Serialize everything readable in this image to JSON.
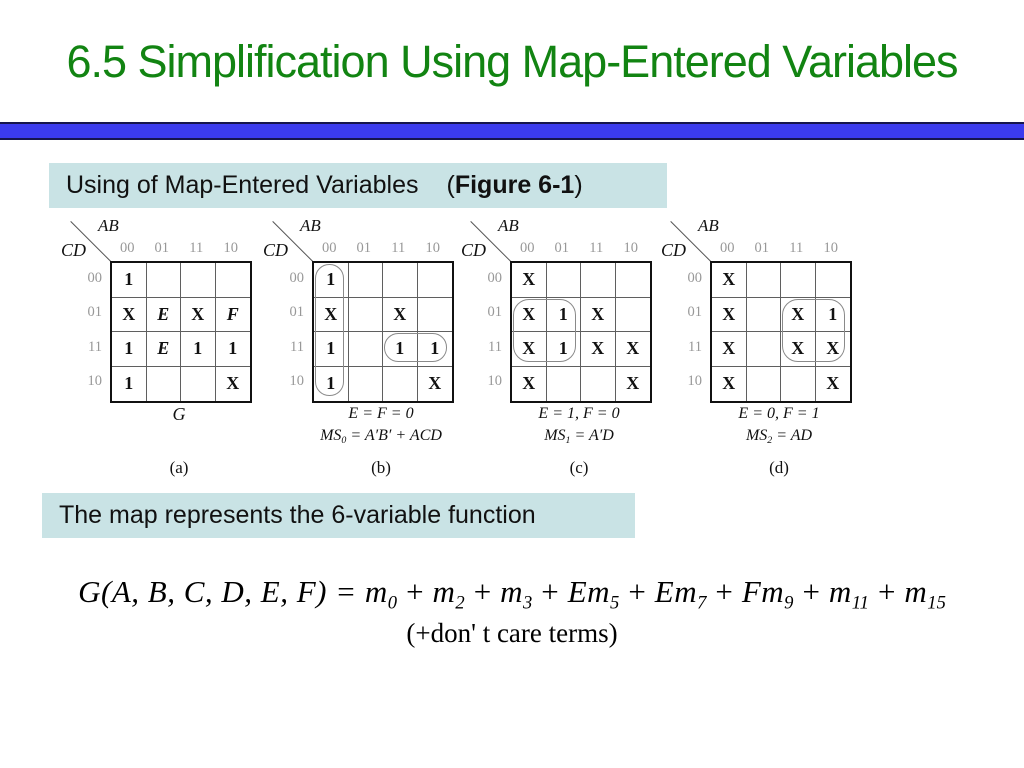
{
  "slide": {
    "title": "6.5 Simplification Using Map-Entered Variables",
    "colors": {
      "title_green": "#128412",
      "divider_blue": "#3b3bee",
      "callout_teal": "#c9e3e5"
    }
  },
  "callout1": {
    "label": "Using of Map-Entered Variables",
    "open": "(",
    "figure": "Figure 6-1",
    "close": ")"
  },
  "callout2": {
    "text": "The map represents the 6-variable function"
  },
  "kmap_axis": {
    "top_var": "AB",
    "side_var": "CD",
    "col_labels": [
      "00",
      "01",
      "11",
      "10"
    ],
    "row_labels": [
      "00",
      "01",
      "11",
      "10"
    ]
  },
  "maps": [
    {
      "label": "(a)",
      "cells": [
        [
          "1",
          "",
          "",
          ""
        ],
        [
          "X",
          "E",
          "X",
          "F"
        ],
        [
          "1",
          "E",
          "1",
          "1"
        ],
        [
          "1",
          "",
          "",
          "X"
        ]
      ],
      "loops": [],
      "caption_g": "G"
    },
    {
      "label": "(b)",
      "cells": [
        [
          "1",
          "",
          "",
          ""
        ],
        [
          "X",
          "",
          "X",
          ""
        ],
        [
          "1",
          "",
          "1",
          "1"
        ],
        [
          "1",
          "",
          "",
          "X"
        ]
      ],
      "loops": [
        {
          "rows": [
            0,
            3
          ],
          "cols": [
            0,
            0
          ]
        },
        {
          "rows": [
            2,
            2
          ],
          "cols": [
            2,
            3
          ]
        }
      ],
      "eq1": "E = F = 0",
      "eq2": {
        "pre": "MS",
        "sub": "0",
        "post": " = A′B′ + ACD"
      }
    },
    {
      "label": "(c)",
      "cells": [
        [
          "X",
          "",
          "",
          ""
        ],
        [
          "X",
          "1",
          "X",
          ""
        ],
        [
          "X",
          "1",
          "X",
          "X"
        ],
        [
          "X",
          "",
          "",
          "X"
        ]
      ],
      "loops": [
        {
          "rows": [
            1,
            2
          ],
          "cols": [
            0,
            1
          ]
        }
      ],
      "eq1": "E = 1, F = 0",
      "eq2": {
        "pre": "MS",
        "sub": "1",
        "post": " = A′D"
      }
    },
    {
      "label": "(d)",
      "cells": [
        [
          "X",
          "",
          "",
          ""
        ],
        [
          "X",
          "",
          "X",
          "1"
        ],
        [
          "X",
          "",
          "X",
          "X"
        ],
        [
          "X",
          "",
          "",
          "X"
        ]
      ],
      "loops": [
        {
          "rows": [
            1,
            2
          ],
          "cols": [
            2,
            3
          ]
        }
      ],
      "eq1": "E = 0, F = 1",
      "eq2": {
        "pre": "MS",
        "sub": "2",
        "post": " = AD"
      }
    }
  ],
  "formula": {
    "lhs": "G(A, B, C, D, E, F) = ",
    "plus": "+",
    "terms": [
      {
        "coef": "",
        "base": "m",
        "sub": "0"
      },
      {
        "coef": "",
        "base": "m",
        "sub": "2"
      },
      {
        "coef": "",
        "base": "m",
        "sub": "3"
      },
      {
        "coef": "E",
        "base": "m",
        "sub": "5"
      },
      {
        "coef": "E",
        "base": "m",
        "sub": "7"
      },
      {
        "coef": "F",
        "base": "m",
        "sub": "9"
      },
      {
        "coef": "",
        "base": "m",
        "sub": "11"
      },
      {
        "coef": "",
        "base": "m",
        "sub": "15"
      }
    ],
    "note": "(+don' t care terms)"
  }
}
